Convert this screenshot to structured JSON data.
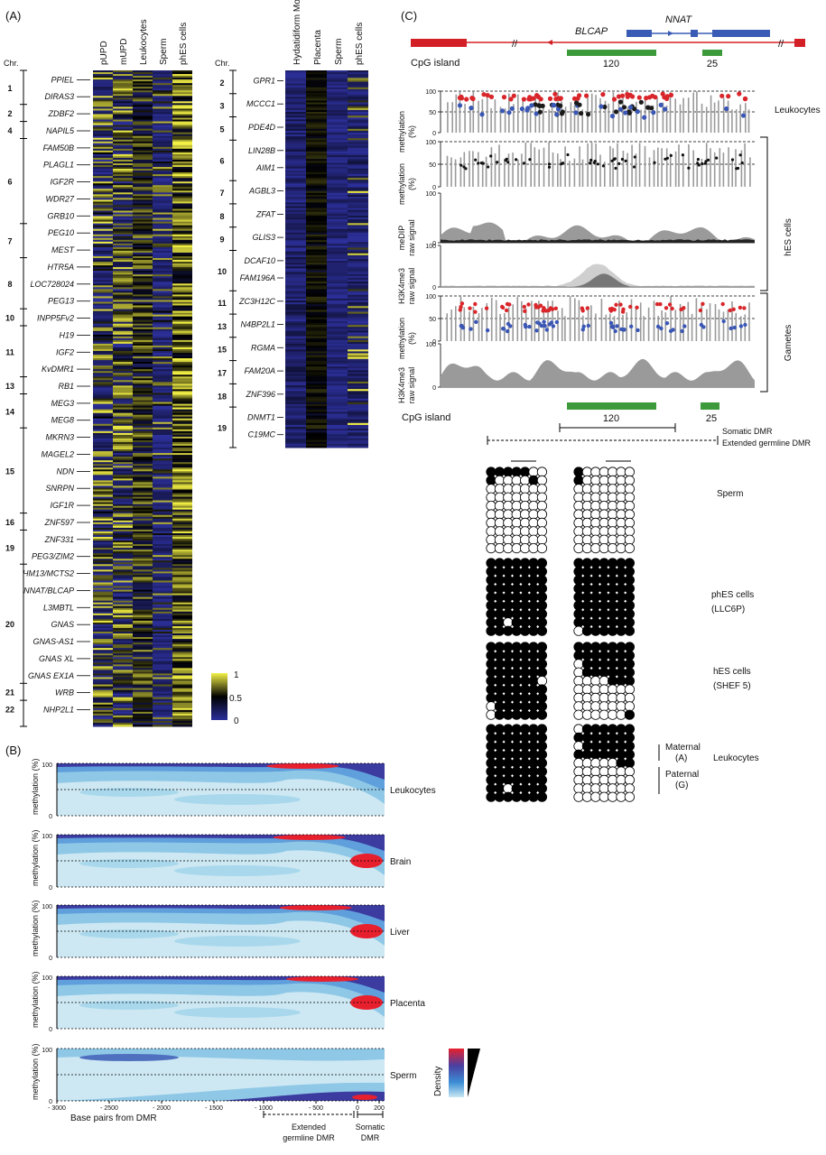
{
  "panels": {
    "a": "(A)",
    "b": "(B)",
    "c": "(C)"
  },
  "heatmap1": {
    "chr_header": "Chr.",
    "columns": [
      "pUPD",
      "mUPD",
      "Leukocytes",
      "Sperm",
      "phES cells"
    ],
    "chromosomes": [
      {
        "label": "1",
        "genes": [
          "PPIEL",
          "DIRAS3"
        ]
      },
      {
        "label": "2",
        "genes": [
          "ZDBF2"
        ]
      },
      {
        "label": "4",
        "genes": [
          "NAPIL5"
        ]
      },
      {
        "label": "6",
        "genes": [
          "FAM50B",
          "PLAGL1",
          "IGF2R",
          "WDR27",
          "GRB10"
        ]
      },
      {
        "label": "7",
        "genes": [
          "PEG10",
          "MEST"
        ]
      },
      {
        "label": "8",
        "genes": [
          "HTR5A",
          "LOC728024",
          "PEG13"
        ]
      },
      {
        "label": "10",
        "genes": [
          "INPP5Fv2"
        ]
      },
      {
        "label": "11",
        "genes": [
          "H19",
          "IGF2",
          "KvDMR1"
        ]
      },
      {
        "label": "13",
        "genes": [
          "RB1"
        ]
      },
      {
        "label": "14",
        "genes": [
          "MEG3",
          "MEG8"
        ]
      },
      {
        "label": "15",
        "genes": [
          "MKRN3",
          "MAGEL2",
          "NDN",
          "SNRPN",
          "IGF1R"
        ]
      },
      {
        "label": "16",
        "genes": [
          "ZNF597"
        ]
      },
      {
        "label": "19",
        "genes": [
          "ZNF331",
          "PEG3/ZIM2"
        ]
      },
      {
        "label": "20",
        "genes": [
          "HM13/MCTS2",
          "NNAT/BLCAP",
          "L3MBTL",
          "GNAS",
          "GNAS-AS1",
          "GNAS XL",
          "GNAS EX1A"
        ]
      },
      {
        "label": "21",
        "genes": [
          "WRB"
        ]
      },
      {
        "label": "22",
        "genes": [
          "NHP2L1"
        ]
      }
    ]
  },
  "heatmap2": {
    "chr_header": "Chr.",
    "columns": [
      "Hydatidiform Mole",
      "Placenta",
      "Sperm",
      "phES cells"
    ],
    "chromosomes": [
      {
        "label": "2",
        "genes": [
          "GPR1"
        ]
      },
      {
        "label": "3",
        "genes": [
          "MCCC1"
        ]
      },
      {
        "label": "5",
        "genes": [
          "PDE4D"
        ]
      },
      {
        "label": "6",
        "genes": [
          "LIN28B",
          "AIM1"
        ]
      },
      {
        "label": "7",
        "genes": [
          "AGBL3"
        ]
      },
      {
        "label": "8",
        "genes": [
          "ZFAT"
        ]
      },
      {
        "label": "9",
        "genes": [
          "GLIS3"
        ]
      },
      {
        "label": "10",
        "genes": [
          "DCAF10",
          "FAM196A"
        ]
      },
      {
        "label": "11",
        "genes": [
          "ZC3H12C"
        ]
      },
      {
        "label": "13",
        "genes": [
          "N4BP2L1"
        ]
      },
      {
        "label": "15",
        "genes": [
          "RGMA"
        ]
      },
      {
        "label": "17",
        "genes": [
          "FAM20A"
        ]
      },
      {
        "label": "18",
        "genes": [
          "ZNF396"
        ]
      },
      {
        "label": "19",
        "genes": [
          "DNMT1",
          "C19MC"
        ]
      }
    ]
  },
  "colorbar": {
    "max": "1",
    "mid": "0.5",
    "min": "0",
    "colors": [
      "#2b2f9a",
      "#000000",
      "#f3f146"
    ]
  },
  "panel_b": {
    "ylabel": "methylation (%)",
    "tick_100": "100",
    "tick_0": "0",
    "rows": [
      "Leukocytes",
      "Brain",
      "Liver",
      "Placenta",
      "Sperm"
    ],
    "x_ticks": [
      "- 3000",
      "- 2500",
      "- 2000",
      "- 1500",
      "- 1000",
      "- 500",
      "0",
      "200"
    ],
    "xlabel": "Base pairs from DMR",
    "extended_label": [
      "Extended",
      "germline DMR"
    ],
    "somatic_label": [
      "Somatic",
      "DMR"
    ],
    "density_label": "Density",
    "density_colors": [
      "#e8202e",
      "#4b3fa0",
      "#3c8fd6",
      "#c9e8f3"
    ]
  },
  "panel_c": {
    "genes": [
      "BLCAP",
      "NNAT"
    ],
    "cpg_label": "CpG island",
    "cpg_values": [
      "120",
      "25"
    ],
    "gene_colors": {
      "blcap": "#d32027",
      "nnat": "#3a5bb5",
      "cpg": "#3d9a3a"
    },
    "tracks": [
      {
        "ylabel": [
          "methylation",
          "(%)"
        ],
        "ticks": [
          "100",
          "50",
          "0"
        ]
      },
      {
        "ylabel": [
          "methylation",
          "(%)"
        ],
        "ticks": [
          "100",
          "50",
          "0"
        ]
      },
      {
        "ylabel": [
          "meDIP",
          "raw signal"
        ],
        "ticks": [
          "100",
          "0"
        ]
      },
      {
        "ylabel": [
          "H3K4me3",
          "raw signal"
        ],
        "ticks": [
          "100",
          "0"
        ]
      },
      {
        "ylabel": [
          "methylation",
          "(%)"
        ],
        "ticks": [
          "100",
          "50",
          "0"
        ]
      },
      {
        "ylabel": [
          "H3K4me3",
          "raw signal"
        ],
        "ticks": [
          "100",
          "0"
        ]
      }
    ],
    "group_labels": {
      "leukocytes": "Leukocytes",
      "hes": "hES cells",
      "gametes": "Gametes"
    },
    "somatic_dmr": "Somatic DMR",
    "extended_dmr": "Extended germline DMR",
    "bisulfite": [
      {
        "label": [
          "Sperm"
        ]
      },
      {
        "label": [
          "phES cells",
          "(LLC6P)"
        ]
      },
      {
        "label": [
          "hES cells",
          "(SHEF 5)"
        ]
      },
      {
        "label": [
          "Leukocytes"
        ]
      }
    ],
    "maternal": [
      "Maternal",
      "(A)"
    ],
    "paternal": [
      "Paternal",
      "(G)"
    ]
  }
}
